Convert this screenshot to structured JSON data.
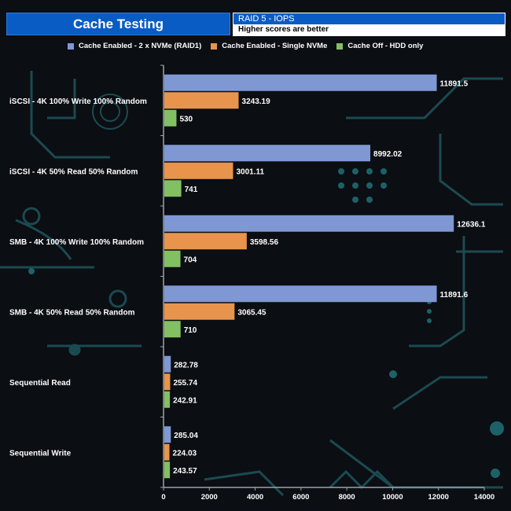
{
  "header": {
    "title": "Cache Testing",
    "subtitle": "RAID 5 - IOPS",
    "note": "Higher scores are better"
  },
  "colors": {
    "title_bg": "#0a5cc5",
    "series1": "#7f97d3",
    "series2": "#e8944c",
    "series3": "#82c063"
  },
  "chart_data": {
    "type": "bar",
    "orientation": "horizontal",
    "title": "Cache Testing",
    "subtitle": "RAID 5 - IOPS",
    "note": "Higher scores are better",
    "categories": [
      "iSCSI - 4K 100% Write 100% Random",
      "iSCSI - 4K 50% Read 50% Random",
      "SMB - 4K 100% Write 100% Random",
      "SMB - 4K 50% Read 50% Random",
      "Sequential Read",
      "Sequential Write"
    ],
    "series": [
      {
        "name": "Cache Enabled - 2 x NVMe (RAID1)",
        "color": "#7f97d3",
        "values": [
          11891.5,
          8992.02,
          12636.1,
          11891.6,
          282.78,
          285.04
        ],
        "labels": [
          "11891.5",
          "8992.02",
          "12636.1",
          "11891.6",
          "282.78",
          "285.04"
        ]
      },
      {
        "name": "Cache Enabled - Single NVMe",
        "color": "#e8944c",
        "values": [
          3243.19,
          3001.11,
          3598.56,
          3065.45,
          255.74,
          224.03
        ],
        "labels": [
          "3243.19",
          "3001.11",
          "3598.56",
          "3065.45",
          "255.74",
          "224.03"
        ]
      },
      {
        "name": "Cache Off - HDD only",
        "color": "#82c063",
        "values": [
          530,
          741,
          704,
          710,
          242.91,
          243.57
        ],
        "labels": [
          "530",
          "741",
          "704",
          "710",
          "242.91",
          "243.57"
        ]
      }
    ],
    "xlim": [
      0,
      14000
    ],
    "xticks": [
      0,
      2000,
      4000,
      6000,
      8000,
      10000,
      12000,
      14000
    ],
    "xlabel": "",
    "ylabel": "",
    "legend": "top",
    "grid": false
  }
}
